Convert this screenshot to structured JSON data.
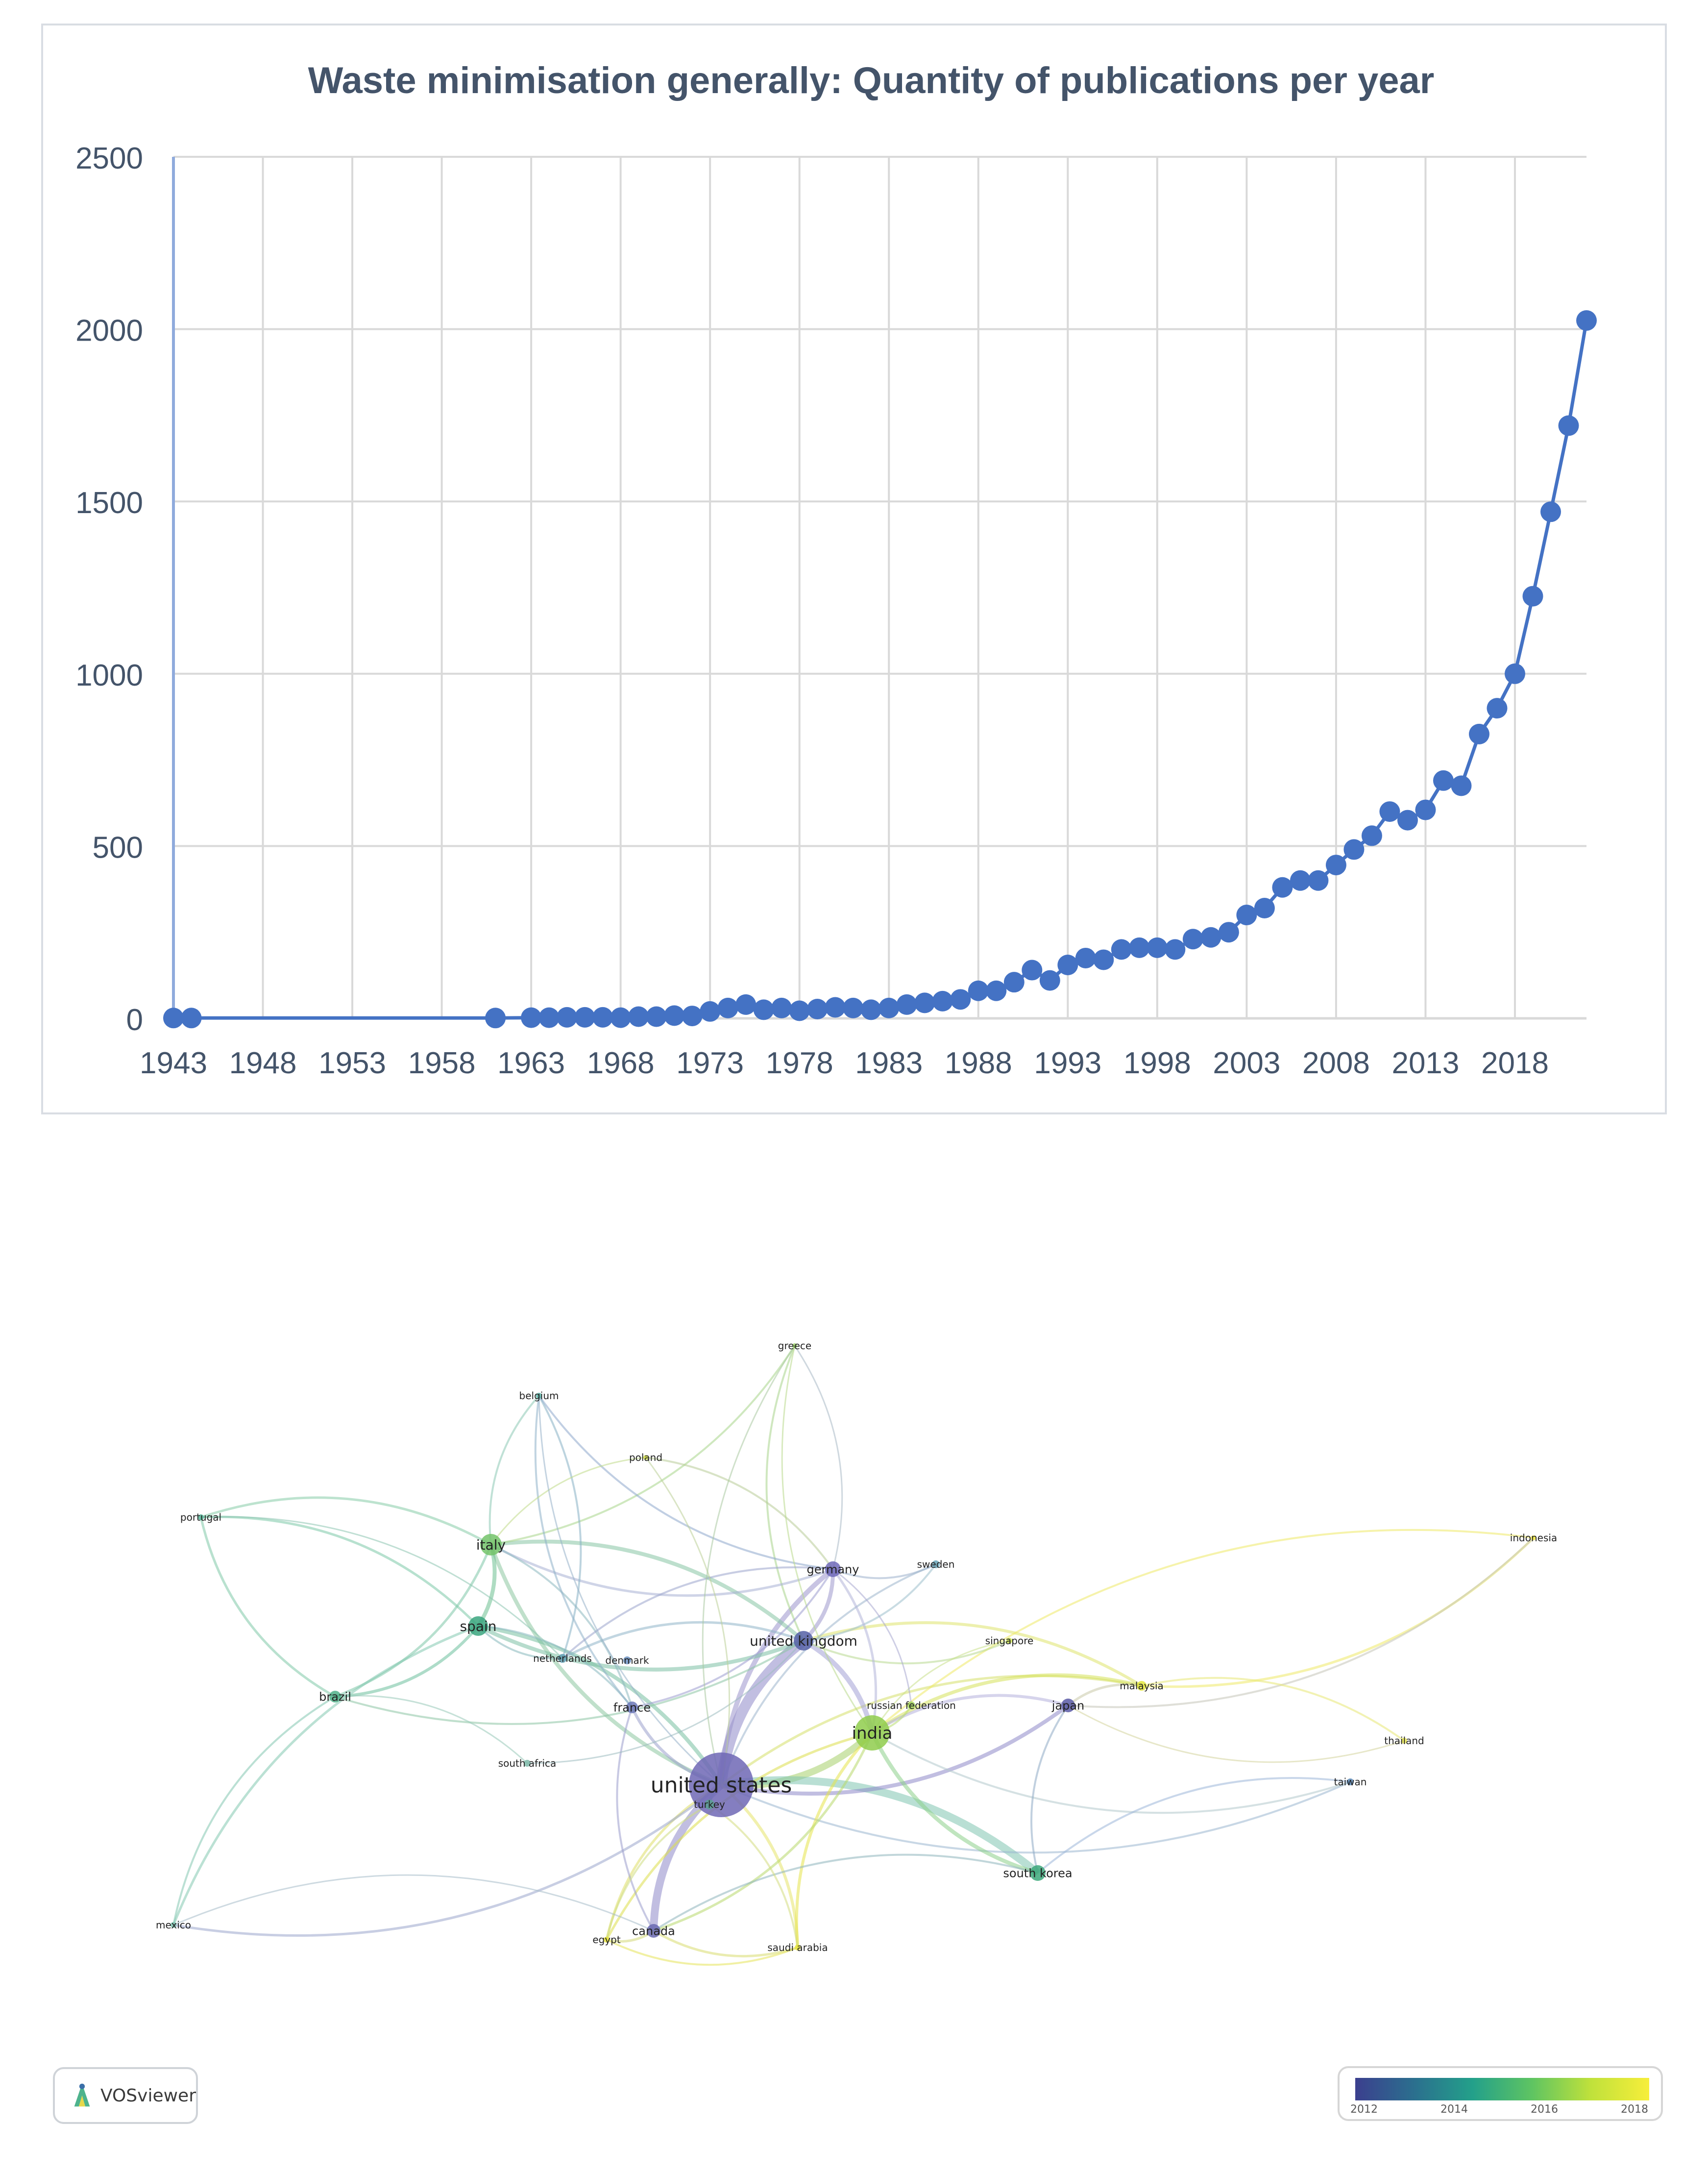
{
  "chart_data": {
    "type": "line",
    "title": "Waste minimisation generally: Quantity of publications per year",
    "xlabel": "",
    "ylabel": "",
    "ylim": [
      0,
      2500
    ],
    "xlim": [
      1943,
      2022
    ],
    "y_ticks": [
      "0",
      "500",
      "1000",
      "1500",
      "2000",
      "2500"
    ],
    "x_ticks": [
      "1943",
      "1948",
      "1953",
      "1958",
      "1963",
      "1968",
      "1973",
      "1978",
      "1983",
      "1988",
      "1993",
      "1998",
      "2003",
      "2008",
      "2013",
      "2018"
    ],
    "grid": true,
    "x": [
      1943,
      1944,
      1961,
      1963,
      1964,
      1965,
      1966,
      1967,
      1968,
      1969,
      1970,
      1971,
      1972,
      1973,
      1974,
      1975,
      1976,
      1977,
      1978,
      1979,
      1980,
      1981,
      1982,
      1983,
      1984,
      1985,
      1986,
      1987,
      1988,
      1989,
      1990,
      1991,
      1992,
      1993,
      1994,
      1995,
      1996,
      1997,
      1998,
      1999,
      2000,
      2001,
      2002,
      2003,
      2004,
      2005,
      2006,
      2007,
      2008,
      2009,
      2010,
      2011,
      2012,
      2013,
      2014,
      2015,
      2016,
      2017,
      2018,
      2019,
      2020,
      2021,
      2022
    ],
    "values": [
      1,
      1,
      1,
      2,
      2,
      3,
      3,
      3,
      2,
      5,
      5,
      8,
      7,
      20,
      30,
      40,
      25,
      30,
      22,
      27,
      32,
      30,
      25,
      30,
      40,
      45,
      50,
      55,
      80,
      80,
      105,
      140,
      110,
      155,
      175,
      170,
      200,
      205,
      205,
      200,
      230,
      235,
      250,
      300,
      320,
      380,
      400,
      400,
      445,
      490,
      530,
      600,
      575,
      605,
      690,
      675,
      825,
      900,
      1000,
      1225,
      1470,
      1720,
      2025
    ],
    "color": "#4472c4"
  },
  "network": {
    "nodes": [
      {
        "label": "greece",
        "color": "#9fd46c"
      },
      {
        "label": "belgium",
        "color": "#5fb5a8"
      },
      {
        "label": "poland",
        "color": "#d8e34a"
      },
      {
        "label": "portugal",
        "color": "#57b79a"
      },
      {
        "label": "italy",
        "color": "#73c36a"
      },
      {
        "label": "germany",
        "color": "#6f68b8"
      },
      {
        "label": "sweden",
        "color": "#6aa6b8"
      },
      {
        "label": "indonesia",
        "color": "#f2ea42"
      },
      {
        "label": "spain",
        "color": "#3aa57e"
      },
      {
        "label": "united kingdom",
        "color": "#5560a6"
      },
      {
        "label": "singapore",
        "color": "#c8de4c"
      },
      {
        "label": "netherlands",
        "color": "#5e9cb0"
      },
      {
        "label": "denmark",
        "color": "#6b8fc0"
      },
      {
        "label": "malaysia",
        "color": "#e3e640"
      },
      {
        "label": "brazil",
        "color": "#4fb088"
      },
      {
        "label": "france",
        "color": "#6c78b8"
      },
      {
        "label": "russian federation",
        "color": "#a2d35a"
      },
      {
        "label": "japan",
        "color": "#5a5aa6"
      },
      {
        "label": "india",
        "color": "#8fcc4c"
      },
      {
        "label": "thailand",
        "color": "#ecea58"
      },
      {
        "label": "south africa",
        "color": "#7cb8a8"
      },
      {
        "label": "united states",
        "color": "#6f67b5"
      },
      {
        "label": "taiwan",
        "color": "#5c8ab8"
      },
      {
        "label": "turkey",
        "color": "#5aa090"
      },
      {
        "label": "south korea",
        "color": "#3ca87a"
      },
      {
        "label": "mexico",
        "color": "#7cc4b0"
      },
      {
        "label": "canada",
        "color": "#6a6ab2"
      },
      {
        "label": "egypt",
        "color": "#e6e23c"
      },
      {
        "label": "saudi arabia",
        "color": "#e9e53e"
      }
    ],
    "legend_ticks": [
      "2012",
      "2014",
      "2016",
      "2018"
    ],
    "logo_text": "VOSviewer"
  }
}
